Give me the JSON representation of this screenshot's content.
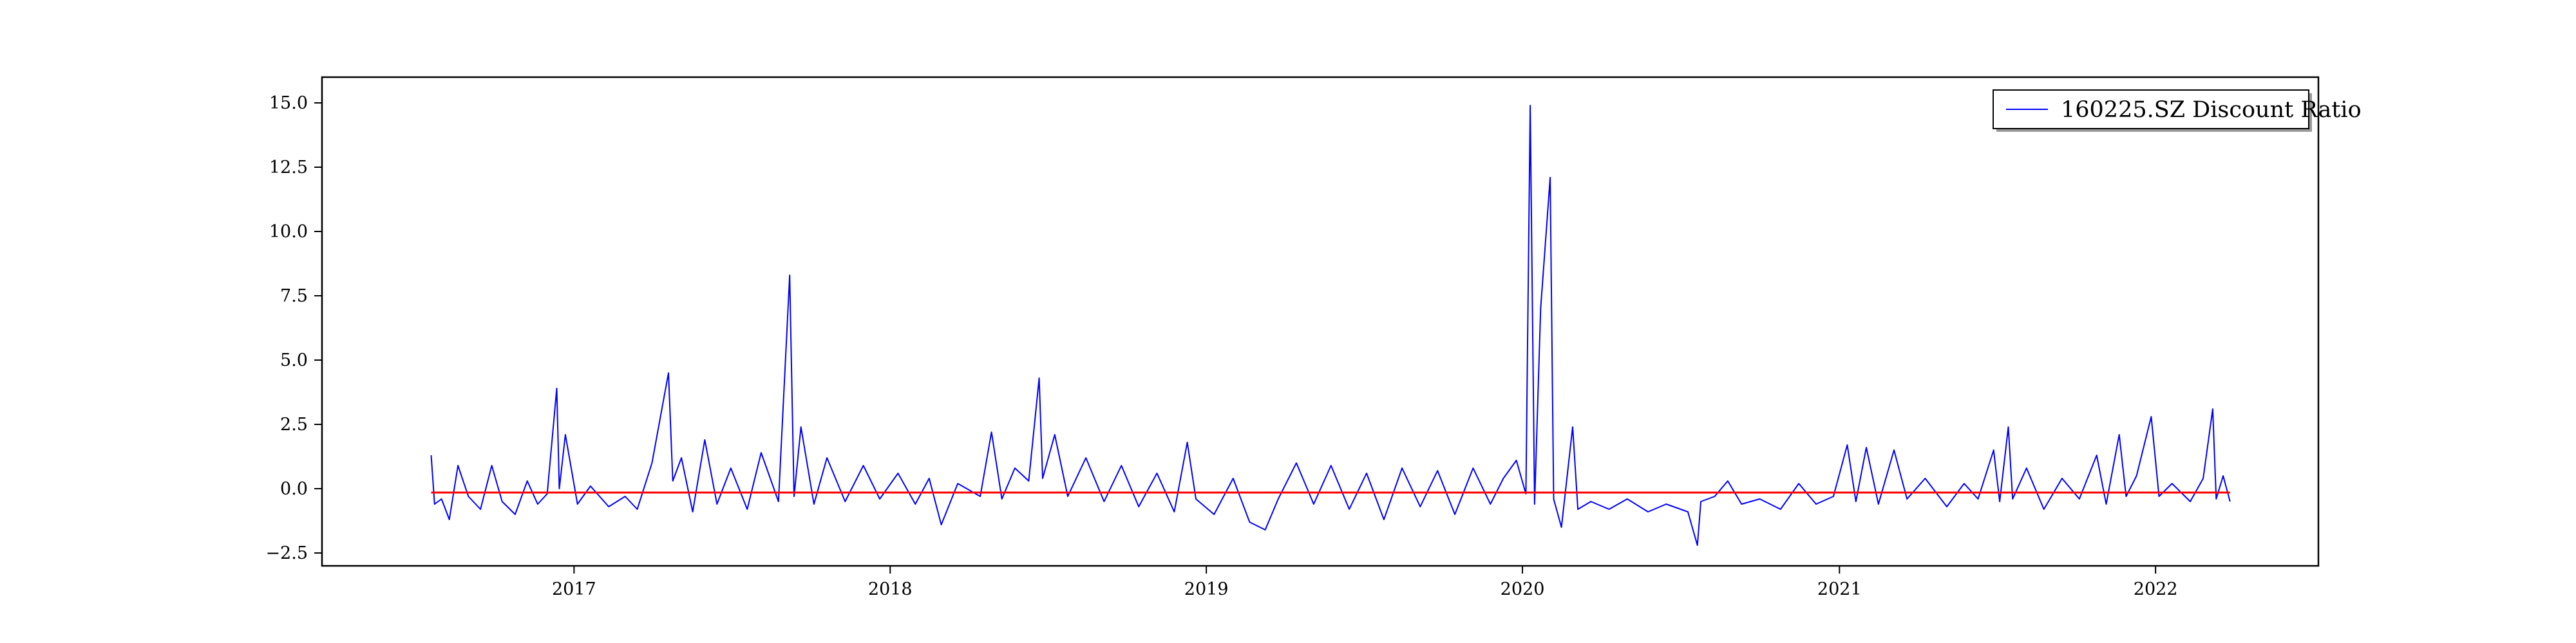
{
  "chart_data": {
    "type": "line",
    "title": "",
    "xlabel": "",
    "ylabel": "",
    "x_range": [
      "2016-03-16",
      "2022-07-08"
    ],
    "ylim": [
      -3.0,
      16.0
    ],
    "grid": false,
    "legend": {
      "position": "top-right",
      "entries": [
        "160225.SZ Discount Ratio"
      ]
    },
    "x_ticks": [
      {
        "date": "2017-01-01",
        "label": "2017"
      },
      {
        "date": "2018-01-01",
        "label": "2018"
      },
      {
        "date": "2019-01-01",
        "label": "2019"
      },
      {
        "date": "2020-01-01",
        "label": "2020"
      },
      {
        "date": "2021-01-01",
        "label": "2021"
      },
      {
        "date": "2022-01-01",
        "label": "2022"
      }
    ],
    "y_ticks": [
      {
        "value": -2.5,
        "label": "−2.5"
      },
      {
        "value": 0.0,
        "label": "0.0"
      },
      {
        "value": 2.5,
        "label": "2.5"
      },
      {
        "value": 5.0,
        "label": "5.0"
      },
      {
        "value": 7.5,
        "label": "7.5"
      },
      {
        "value": 10.0,
        "label": "10.0"
      },
      {
        "value": 12.5,
        "label": "12.5"
      },
      {
        "value": 15.0,
        "label": "15.0"
      }
    ],
    "series": [
      {
        "name": "160225.SZ Discount Ratio",
        "color": "#0000ff",
        "points": [
          [
            "2016-07-20",
            1.3
          ],
          [
            "2016-07-24",
            -0.6
          ],
          [
            "2016-08-01",
            -0.4
          ],
          [
            "2016-08-10",
            -1.2
          ],
          [
            "2016-08-20",
            0.9
          ],
          [
            "2016-09-01",
            -0.3
          ],
          [
            "2016-09-15",
            -0.8
          ],
          [
            "2016-09-28",
            0.9
          ],
          [
            "2016-10-10",
            -0.5
          ],
          [
            "2016-10-25",
            -1.0
          ],
          [
            "2016-11-08",
            0.3
          ],
          [
            "2016-11-20",
            -0.6
          ],
          [
            "2016-12-01",
            -0.2
          ],
          [
            "2016-12-12",
            3.9
          ],
          [
            "2016-12-15",
            0.0
          ],
          [
            "2016-12-22",
            2.1
          ],
          [
            "2017-01-05",
            -0.6
          ],
          [
            "2017-01-20",
            0.1
          ],
          [
            "2017-02-10",
            -0.7
          ],
          [
            "2017-03-01",
            -0.3
          ],
          [
            "2017-03-15",
            -0.8
          ],
          [
            "2017-04-01",
            1.0
          ],
          [
            "2017-04-20",
            4.5
          ],
          [
            "2017-04-25",
            0.3
          ],
          [
            "2017-05-05",
            1.2
          ],
          [
            "2017-05-18",
            -0.9
          ],
          [
            "2017-06-01",
            1.9
          ],
          [
            "2017-06-15",
            -0.6
          ],
          [
            "2017-07-01",
            0.8
          ],
          [
            "2017-07-20",
            -0.8
          ],
          [
            "2017-08-05",
            1.4
          ],
          [
            "2017-08-25",
            -0.5
          ],
          [
            "2017-09-07",
            8.3
          ],
          [
            "2017-09-12",
            -0.3
          ],
          [
            "2017-09-20",
            2.4
          ],
          [
            "2017-10-05",
            -0.6
          ],
          [
            "2017-10-20",
            1.2
          ],
          [
            "2017-11-10",
            -0.5
          ],
          [
            "2017-12-01",
            0.9
          ],
          [
            "2017-12-20",
            -0.4
          ],
          [
            "2018-01-10",
            0.6
          ],
          [
            "2018-01-30",
            -0.6
          ],
          [
            "2018-02-15",
            0.4
          ],
          [
            "2018-03-01",
            -1.4
          ],
          [
            "2018-03-20",
            0.2
          ],
          [
            "2018-04-15",
            -0.3
          ],
          [
            "2018-04-28",
            2.2
          ],
          [
            "2018-05-10",
            -0.4
          ],
          [
            "2018-05-25",
            0.8
          ],
          [
            "2018-06-10",
            0.3
          ],
          [
            "2018-06-22",
            4.3
          ],
          [
            "2018-06-26",
            0.4
          ],
          [
            "2018-07-10",
            2.1
          ],
          [
            "2018-07-25",
            -0.3
          ],
          [
            "2018-08-15",
            1.2
          ],
          [
            "2018-09-05",
            -0.5
          ],
          [
            "2018-09-25",
            0.9
          ],
          [
            "2018-10-15",
            -0.7
          ],
          [
            "2018-11-05",
            0.6
          ],
          [
            "2018-11-25",
            -0.9
          ],
          [
            "2018-12-10",
            1.8
          ],
          [
            "2018-12-20",
            -0.4
          ],
          [
            "2019-01-10",
            -1.0
          ],
          [
            "2019-02-01",
            0.4
          ],
          [
            "2019-02-20",
            -1.3
          ],
          [
            "2019-03-10",
            -1.6
          ],
          [
            "2019-03-25",
            -0.4
          ],
          [
            "2019-04-15",
            1.0
          ],
          [
            "2019-05-05",
            -0.6
          ],
          [
            "2019-05-25",
            0.9
          ],
          [
            "2019-06-15",
            -0.8
          ],
          [
            "2019-07-05",
            0.6
          ],
          [
            "2019-07-25",
            -1.2
          ],
          [
            "2019-08-15",
            0.8
          ],
          [
            "2019-09-05",
            -0.7
          ],
          [
            "2019-09-25",
            0.7
          ],
          [
            "2019-10-15",
            -1.0
          ],
          [
            "2019-11-05",
            0.8
          ],
          [
            "2019-11-25",
            -0.6
          ],
          [
            "2019-12-10",
            0.4
          ],
          [
            "2019-12-25",
            1.1
          ],
          [
            "2020-01-05",
            -0.2
          ],
          [
            "2020-01-10",
            14.9
          ],
          [
            "2020-01-15",
            -0.6
          ],
          [
            "2020-01-22",
            7.0
          ],
          [
            "2020-02-02",
            12.1
          ],
          [
            "2020-02-06",
            -0.4
          ],
          [
            "2020-02-15",
            -1.5
          ],
          [
            "2020-02-28",
            2.4
          ],
          [
            "2020-03-05",
            -0.8
          ],
          [
            "2020-03-20",
            -0.5
          ],
          [
            "2020-04-10",
            -0.8
          ],
          [
            "2020-05-01",
            -0.4
          ],
          [
            "2020-05-25",
            -0.9
          ],
          [
            "2020-06-15",
            -0.6
          ],
          [
            "2020-07-10",
            -0.9
          ],
          [
            "2020-07-21",
            -2.2
          ],
          [
            "2020-07-25",
            -0.5
          ],
          [
            "2020-08-10",
            -0.3
          ],
          [
            "2020-08-25",
            0.3
          ],
          [
            "2020-09-10",
            -0.6
          ],
          [
            "2020-10-01",
            -0.4
          ],
          [
            "2020-10-25",
            -0.8
          ],
          [
            "2020-11-15",
            0.2
          ],
          [
            "2020-12-05",
            -0.6
          ],
          [
            "2020-12-25",
            -0.3
          ],
          [
            "2021-01-10",
            1.7
          ],
          [
            "2021-01-20",
            -0.5
          ],
          [
            "2021-02-01",
            1.6
          ],
          [
            "2021-02-15",
            -0.6
          ],
          [
            "2021-03-05",
            1.5
          ],
          [
            "2021-03-20",
            -0.4
          ],
          [
            "2021-04-10",
            0.4
          ],
          [
            "2021-05-05",
            -0.7
          ],
          [
            "2021-05-25",
            0.2
          ],
          [
            "2021-06-10",
            -0.4
          ],
          [
            "2021-06-28",
            1.5
          ],
          [
            "2021-07-05",
            -0.5
          ],
          [
            "2021-07-15",
            2.4
          ],
          [
            "2021-07-20",
            -0.4
          ],
          [
            "2021-08-05",
            0.8
          ],
          [
            "2021-08-25",
            -0.8
          ],
          [
            "2021-09-15",
            0.4
          ],
          [
            "2021-10-05",
            -0.4
          ],
          [
            "2021-10-25",
            1.3
          ],
          [
            "2021-11-05",
            -0.6
          ],
          [
            "2021-11-20",
            2.1
          ],
          [
            "2021-11-28",
            -0.3
          ],
          [
            "2021-12-10",
            0.5
          ],
          [
            "2021-12-27",
            2.8
          ],
          [
            "2022-01-05",
            -0.3
          ],
          [
            "2022-01-20",
            0.2
          ],
          [
            "2022-02-10",
            -0.5
          ],
          [
            "2022-02-25",
            0.4
          ],
          [
            "2022-03-08",
            3.1
          ],
          [
            "2022-03-12",
            -0.4
          ],
          [
            "2022-03-20",
            0.5
          ],
          [
            "2022-03-28",
            -0.5
          ]
        ]
      },
      {
        "name": "",
        "color": "#ff0000",
        "points": [
          [
            "2016-07-20",
            -0.15
          ],
          [
            "2022-03-28",
            -0.15
          ]
        ]
      }
    ]
  }
}
